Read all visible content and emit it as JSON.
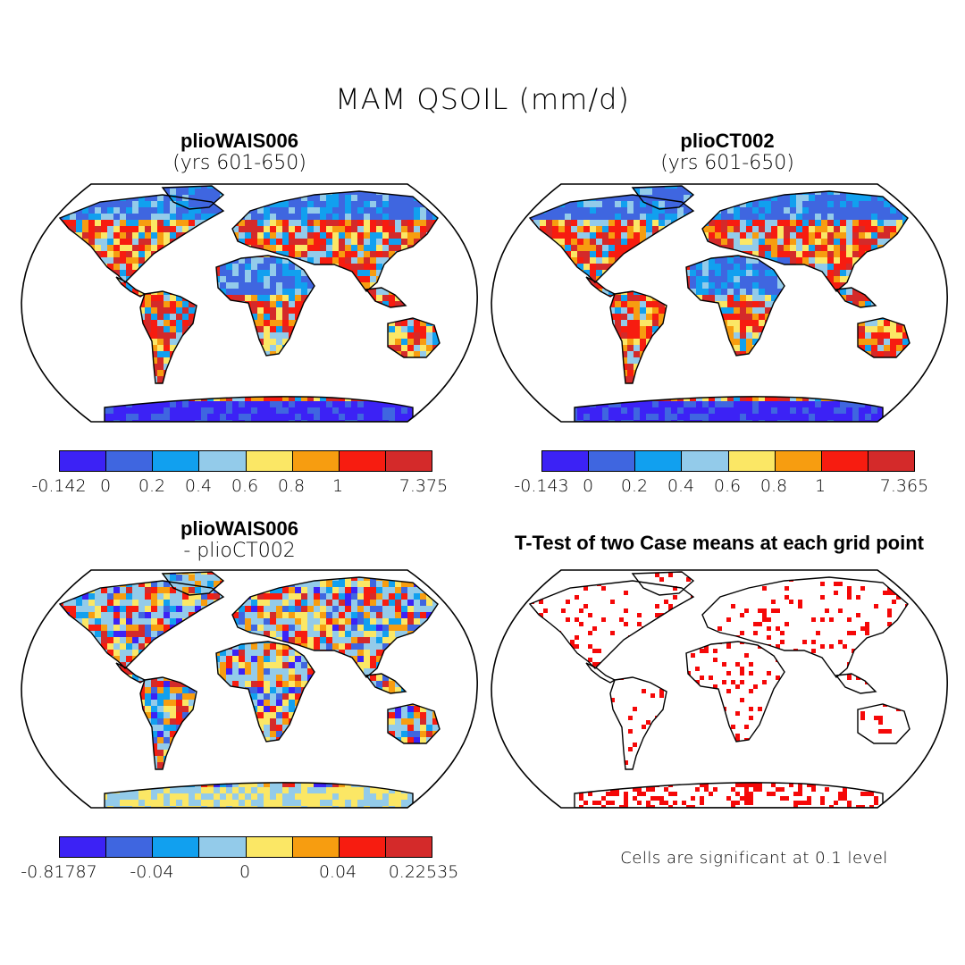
{
  "title": "MAM QSOIL (mm/d)",
  "colors": {
    "scale": [
      "#3c22f5",
      "#3f66e0",
      "#11a0ef",
      "#93cbea",
      "#fbe765",
      "#f79d10",
      "#f71c10",
      "#d42a2a"
    ],
    "ocean": "#ffffff",
    "significant": "#f50808"
  },
  "panels": [
    {
      "title": "plioWAIS006",
      "subtitle": "(yrs 601-650)",
      "colorbar_labels": [
        "-0.142",
        "0",
        "0.2",
        "0.4",
        "0.6",
        "0.8",
        "1",
        "7.375"
      ]
    },
    {
      "title": "plioCT002",
      "subtitle": "(yrs 601-650)",
      "colorbar_labels": [
        "-0.143",
        "0",
        "0.2",
        "0.4",
        "0.6",
        "0.8",
        "1",
        "7.365"
      ]
    },
    {
      "title": "plioWAIS006",
      "subtitle": "- plioCT002",
      "colorbar_labels": [
        "-0.81787",
        "-0.04",
        "0",
        "0.04",
        "0.22535"
      ]
    },
    {
      "title": "T-Test of two Case means at each grid point",
      "footnote": "Cells are significant at 0.1 level"
    }
  ]
}
